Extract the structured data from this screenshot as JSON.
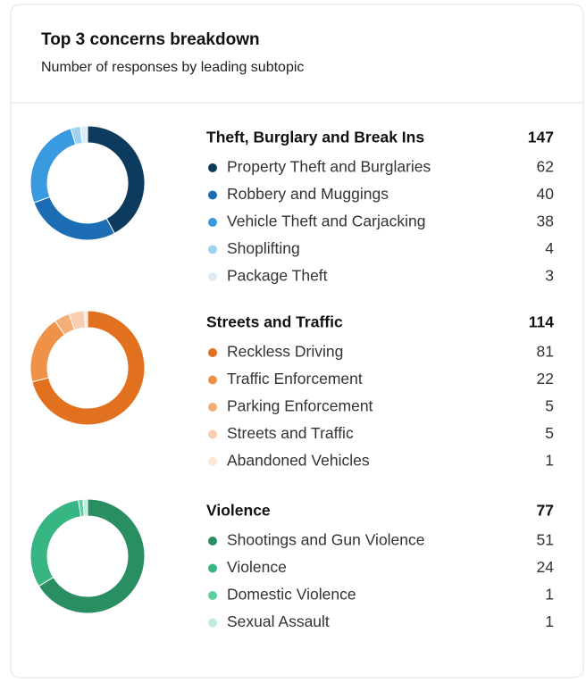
{
  "header": {
    "title": "Top 3 concerns breakdown",
    "subtitle": "Number of responses by leading subtopic"
  },
  "chart_data": [
    {
      "type": "pie",
      "title": "Theft, Burglary and Break Ins",
      "total": 147,
      "categories": [
        "Property Theft and Burglaries",
        "Robbery and Muggings",
        "Vehicle Theft and Carjacking",
        "Shoplifting",
        "Package Theft"
      ],
      "values": [
        62,
        40,
        38,
        4,
        3
      ],
      "colors": [
        "#0c3b5d",
        "#1c6db3",
        "#3a9ae0",
        "#9fd2f1",
        "#ddeef9"
      ]
    },
    {
      "type": "pie",
      "title": "Streets and Traffic",
      "total": 114,
      "categories": [
        "Reckless Driving",
        "Traffic Enforcement",
        "Parking Enforcement",
        "Streets and Traffic",
        "Abandoned Vehicles"
      ],
      "values": [
        81,
        22,
        5,
        5,
        1
      ],
      "colors": [
        "#e2711f",
        "#ef9147",
        "#f4af78",
        "#f8cdb0",
        "#fbe6d8"
      ]
    },
    {
      "type": "pie",
      "title": "Violence",
      "total": 77,
      "categories": [
        "Shootings and Gun Violence",
        "Violence",
        "Domestic Violence",
        "Sexual Assault"
      ],
      "values": [
        51,
        24,
        1,
        1
      ],
      "colors": [
        "#2a8e63",
        "#37b583",
        "#5ccfa0",
        "#c0ece0"
      ]
    }
  ]
}
